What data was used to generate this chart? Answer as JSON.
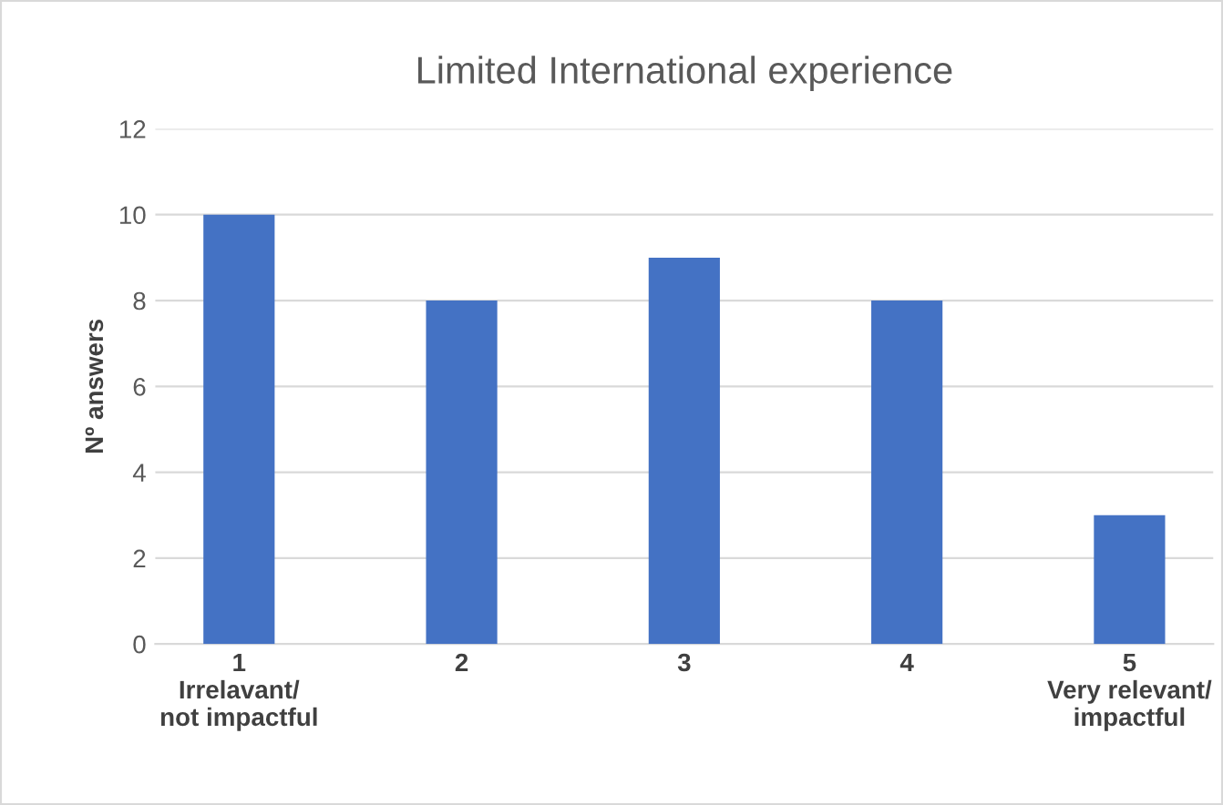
{
  "chart_data": {
    "type": "bar",
    "title": "Limited International experience",
    "ylabel": "Nº answers",
    "categories": [
      "1\nIrrelavant/\nnot impactful",
      "2",
      "3",
      "4",
      "5\nVery relevant/\nimpactful"
    ],
    "values": [
      10,
      8,
      9,
      8,
      3
    ],
    "color": "#4472c4",
    "ylim": [
      0,
      12
    ],
    "yticks": [
      0,
      2,
      4,
      6,
      8,
      10,
      12
    ],
    "grid": "y",
    "legend": false
  }
}
